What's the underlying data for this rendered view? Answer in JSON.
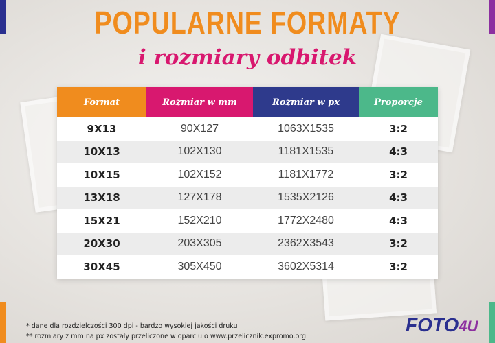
{
  "header": {
    "title": "POPULARNE FORMATY",
    "subtitle": "i rozmiary odbitek"
  },
  "table": {
    "columns": [
      "Format",
      "Rozmiar w mm",
      "Rozmiar w px",
      "Proporcje"
    ],
    "column_colors": [
      "#f08c1e",
      "#d8186f",
      "#2e3a8c",
      "#4cb88a"
    ],
    "rows": [
      [
        "9X13",
        "90X127",
        "1063X1535",
        "3:2"
      ],
      [
        "10X13",
        "102X130",
        "1181X1535",
        "4:3"
      ],
      [
        "10X15",
        "102X152",
        "1181X1772",
        "3:2"
      ],
      [
        "13X18",
        "127X178",
        "1535X2126",
        "4:3"
      ],
      [
        "15X21",
        "152X210",
        "1772X2480",
        "4:3"
      ],
      [
        "20X30",
        "203X305",
        "2362X3543",
        "3:2"
      ],
      [
        "30X45",
        "305X450",
        "3602X5314",
        "3:2"
      ]
    ]
  },
  "footnotes": [
    "* dane dla rozdzielczości 300 dpi - bardzo wysokiej jakości druku",
    "** rozmiary z mm na px zostały przeliczone w oparciu o www.przelicznik.expromo.org"
  ],
  "logo": [
    "FOTO",
    "4U"
  ]
}
